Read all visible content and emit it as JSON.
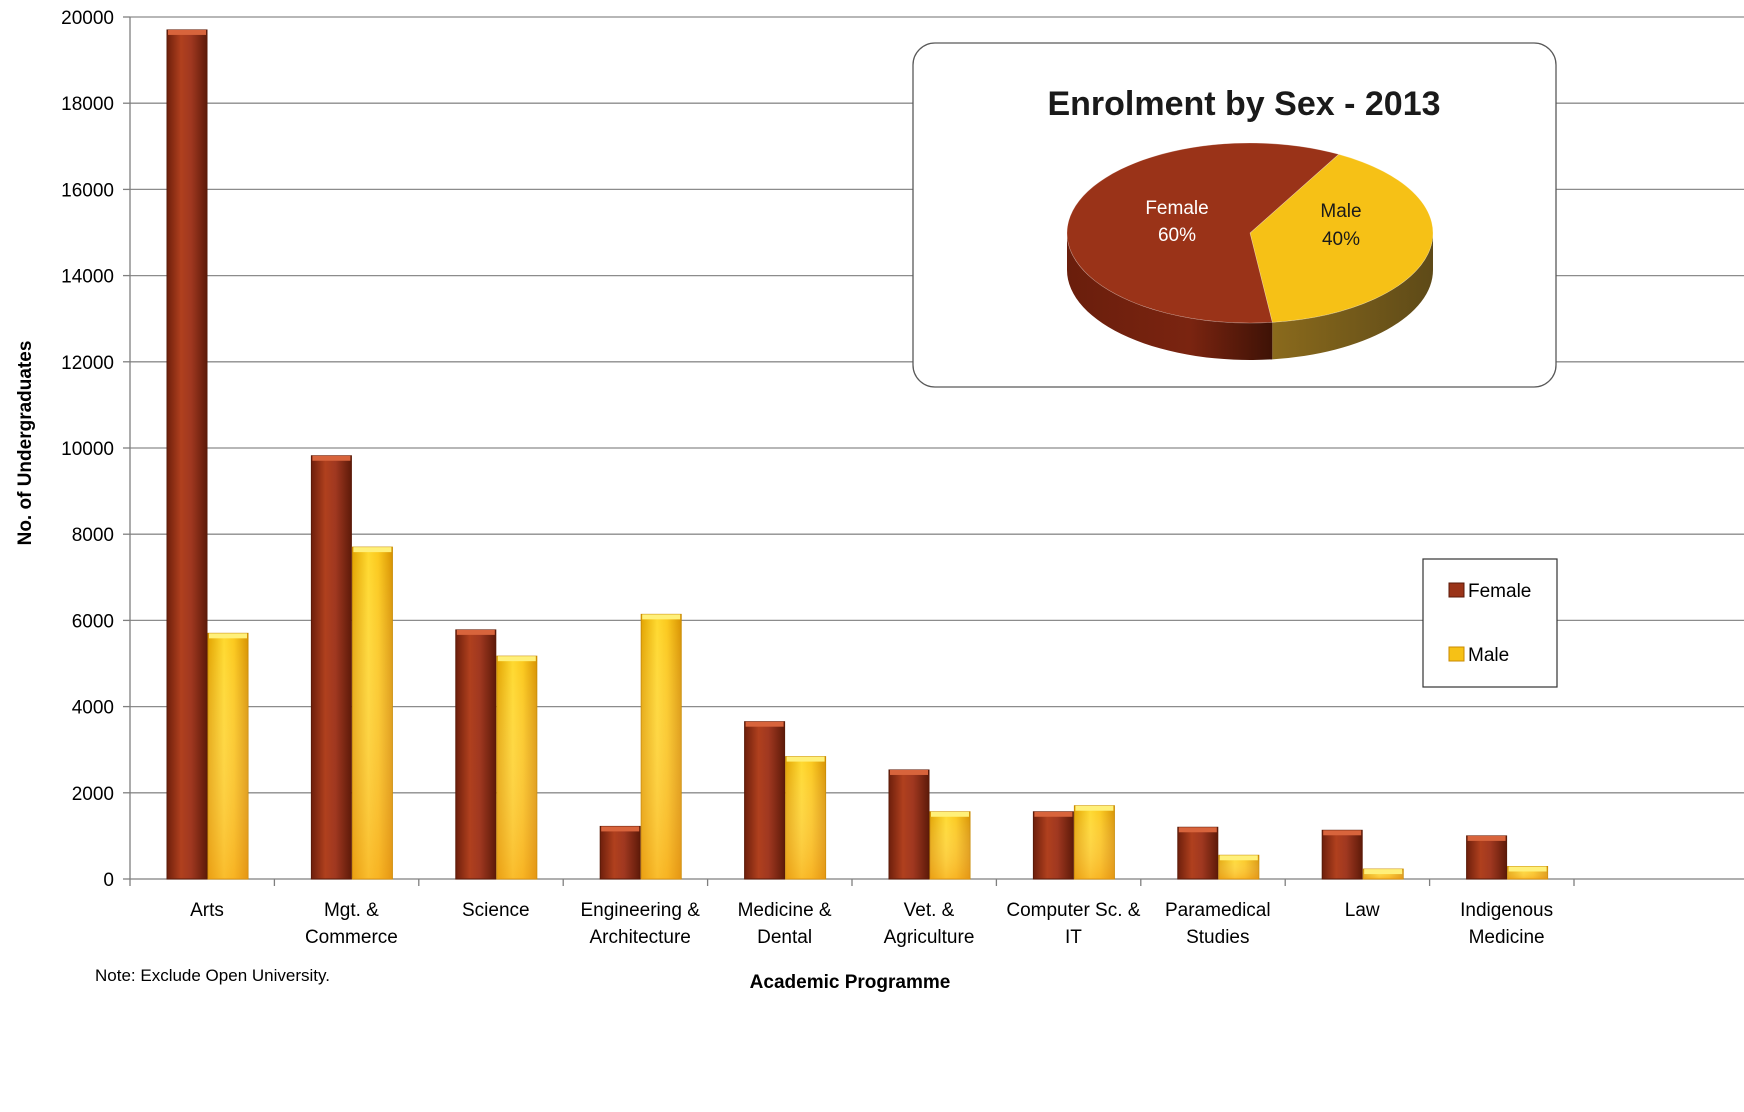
{
  "chart_data": [
    {
      "type": "bar",
      "xlabel": "Academic Programme",
      "ylabel": "No. of Undergraduates",
      "ylim": [
        0,
        20000
      ],
      "yticks": [
        0,
        2000,
        4000,
        6000,
        8000,
        10000,
        12000,
        14000,
        16000,
        18000,
        20000
      ],
      "grid": true,
      "legend_position": "right",
      "categories": [
        [
          "Arts"
        ],
        [
          "Mgt. &",
          "Commerce"
        ],
        [
          "Science"
        ],
        [
          "Engineering &",
          "Architecture"
        ],
        [
          "Medicine &",
          "Dental"
        ],
        [
          "Vet. &",
          "Agriculture"
        ],
        [
          "Computer Sc. &",
          "IT"
        ],
        [
          "Paramedical",
          "Studies"
        ],
        [
          "Law"
        ],
        [
          "Indigenous",
          "Medicine"
        ]
      ],
      "series": [
        {
          "name": "Female",
          "color": "#9a3318",
          "values": [
            19700,
            9820,
            5780,
            1220,
            3650,
            2530,
            1560,
            1200,
            1130,
            1000
          ]
        },
        {
          "name": "Male",
          "color": "#f6c116",
          "values": [
            5700,
            7700,
            5170,
            6140,
            2840,
            1560,
            1700,
            550,
            230,
            290
          ]
        }
      ],
      "note": "Note:  Exclude Open University."
    },
    {
      "type": "pie",
      "title": "Enrolment  by Sex - 2013",
      "slices": [
        {
          "name": "Female",
          "label": "60%",
          "value": 60,
          "color": "#9a3318"
        },
        {
          "name": "Male",
          "label": "40%",
          "value": 40,
          "color": "#f6c116"
        }
      ]
    }
  ]
}
